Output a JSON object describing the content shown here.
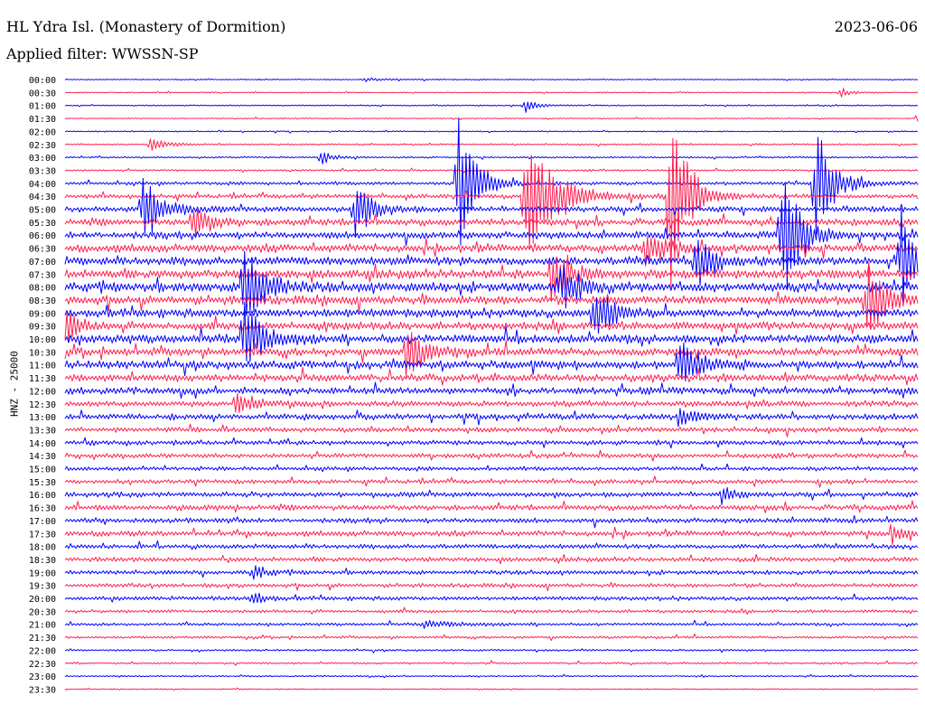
{
  "header": {
    "station": "HL Ydra Isl. (Monastery of Dormition)",
    "date": "2023-06-06",
    "filter": "Applied filter: WWSSN-SP"
  },
  "chart_data": {
    "type": "line",
    "title": "HL Ydra Isl. (Monastery of Dormition)",
    "ylabel": "HNZ - 25000",
    "xlabel": "",
    "colors": [
      "#0000ff",
      "#ff1f4f"
    ],
    "grid": false,
    "legend": "none",
    "row_labels": [
      "00:00",
      "00:30",
      "01:00",
      "01:30",
      "02:00",
      "02:30",
      "03:00",
      "03:30",
      "04:00",
      "04:30",
      "05:00",
      "05:30",
      "06:00",
      "06:30",
      "07:00",
      "07:30",
      "08:00",
      "08:30",
      "09:00",
      "09:30",
      "10:00",
      "10:30",
      "11:00",
      "11:30",
      "12:00",
      "12:30",
      "13:00",
      "13:30",
      "14:00",
      "14:30",
      "15:00",
      "15:30",
      "16:00",
      "16:30",
      "17:00",
      "17:30",
      "18:00",
      "18:30",
      "19:00",
      "19:30",
      "20:00",
      "20:30",
      "21:00",
      "21:30",
      "22:00",
      "22:30",
      "23:00",
      "23:30"
    ],
    "row_noise": [
      0.4,
      0.4,
      0.5,
      0.4,
      0.5,
      0.6,
      0.7,
      0.8,
      1.5,
      1.8,
      2.5,
      3.0,
      3.2,
      3.6,
      3.8,
      4.0,
      4.2,
      4.0,
      3.8,
      3.6,
      3.8,
      3.5,
      3.6,
      3.2,
      3.0,
      2.6,
      2.6,
      2.2,
      2.0,
      2.0,
      1.8,
      1.8,
      2.2,
      2.4,
      2.2,
      2.4,
      2.0,
      2.0,
      1.8,
      1.8,
      1.8,
      1.4,
      1.2,
      1.0,
      0.8,
      0.8,
      0.6,
      0.5
    ],
    "events": [
      {
        "row": 0,
        "t": 0.35,
        "amp": 2,
        "dur": 0.04
      },
      {
        "row": 1,
        "t": 0.91,
        "amp": 5,
        "dur": 0.02
      },
      {
        "row": 2,
        "t": 0.54,
        "amp": 8,
        "dur": 0.02
      },
      {
        "row": 3,
        "t": 1.0,
        "amp": 6,
        "dur": 0.01
      },
      {
        "row": 5,
        "t": 0.1,
        "amp": 7,
        "dur": 0.03
      },
      {
        "row": 6,
        "t": 0.3,
        "amp": 8,
        "dur": 0.02
      },
      {
        "row": 8,
        "t": 0.46,
        "amp": 85,
        "dur": 0.03
      },
      {
        "row": 8,
        "t": 0.88,
        "amp": 70,
        "dur": 0.03
      },
      {
        "row": 9,
        "t": 0.54,
        "amp": 70,
        "dur": 0.05
      },
      {
        "row": 9,
        "t": 0.71,
        "amp": 115,
        "dur": 0.03
      },
      {
        "row": 10,
        "t": 0.09,
        "amp": 45,
        "dur": 0.03
      },
      {
        "row": 10,
        "t": 0.34,
        "amp": 30,
        "dur": 0.03
      },
      {
        "row": 11,
        "t": 0.15,
        "amp": 20,
        "dur": 0.03
      },
      {
        "row": 12,
        "t": 0.84,
        "amp": 80,
        "dur": 0.03
      },
      {
        "row": 13,
        "t": 0.68,
        "amp": 25,
        "dur": 0.03
      },
      {
        "row": 14,
        "t": 0.74,
        "amp": 30,
        "dur": 0.03
      },
      {
        "row": 14,
        "t": 0.98,
        "amp": 60,
        "dur": 0.03
      },
      {
        "row": 15,
        "t": 0.57,
        "amp": 30,
        "dur": 0.03
      },
      {
        "row": 16,
        "t": 0.21,
        "amp": 55,
        "dur": 0.03
      },
      {
        "row": 16,
        "t": 0.58,
        "amp": 30,
        "dur": 0.03
      },
      {
        "row": 17,
        "t": 0.94,
        "amp": 45,
        "dur": 0.03
      },
      {
        "row": 18,
        "t": 0.62,
        "amp": 35,
        "dur": 0.03
      },
      {
        "row": 19,
        "t": 0.0,
        "amp": 20,
        "dur": 0.02
      },
      {
        "row": 20,
        "t": 0.21,
        "amp": 45,
        "dur": 0.03
      },
      {
        "row": 21,
        "t": 0.4,
        "amp": 30,
        "dur": 0.03
      },
      {
        "row": 22,
        "t": 0.72,
        "amp": 35,
        "dur": 0.03
      },
      {
        "row": 25,
        "t": 0.2,
        "amp": 12,
        "dur": 0.03
      },
      {
        "row": 26,
        "t": 0.72,
        "amp": 10,
        "dur": 0.03
      },
      {
        "row": 32,
        "t": 0.77,
        "amp": 10,
        "dur": 0.02
      },
      {
        "row": 35,
        "t": 0.97,
        "amp": 12,
        "dur": 0.02
      },
      {
        "row": 38,
        "t": 0.22,
        "amp": 10,
        "dur": 0.02
      },
      {
        "row": 40,
        "t": 0.22,
        "amp": 8,
        "dur": 0.02
      },
      {
        "row": 42,
        "t": 0.42,
        "amp": 4,
        "dur": 0.06
      }
    ]
  }
}
